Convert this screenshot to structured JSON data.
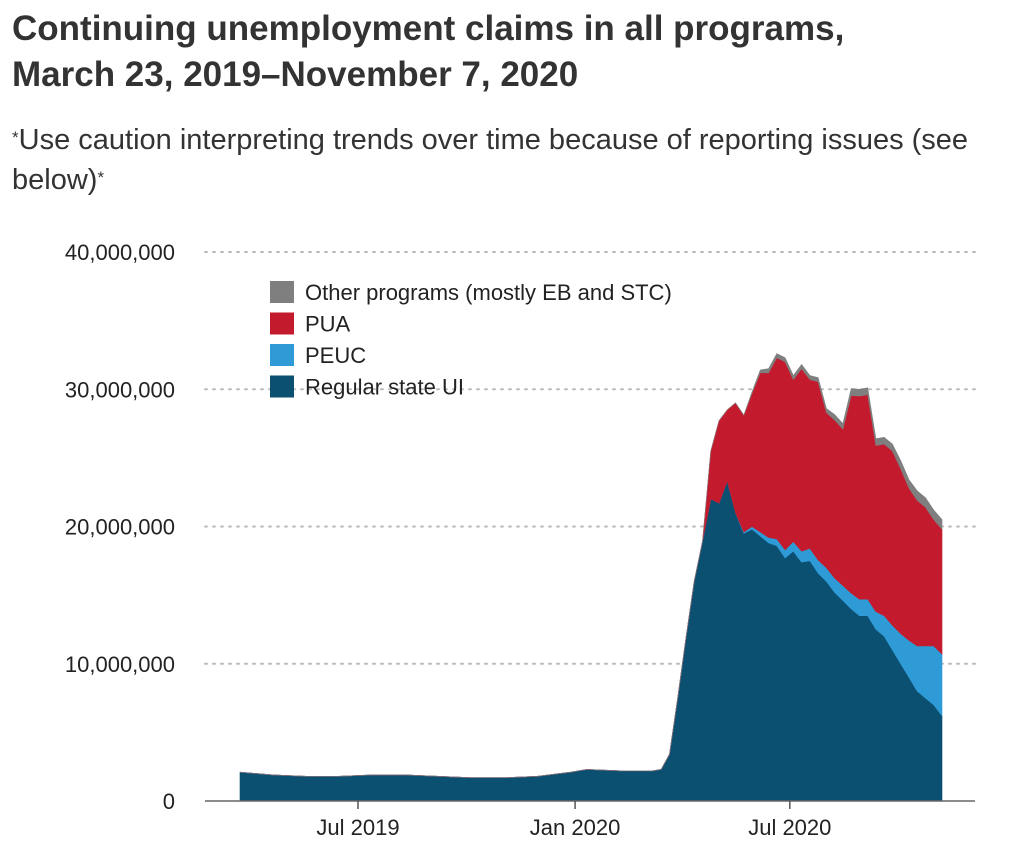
{
  "title_line1": "Continuing unemployment claims in all programs,",
  "title_line2": "March 23, 2019–November 7, 2020",
  "subtitle_prefix": "*",
  "subtitle_text": "Use caution interpreting trends over time because of reporting issues (see below)",
  "subtitle_suffix": "*",
  "chart_data": {
    "type": "area",
    "stacked": true,
    "x_axis": {
      "type": "date",
      "range": [
        "2019-03-23",
        "2020-11-07"
      ],
      "ticks": [
        {
          "date": "2019-07-01",
          "label": "Jul 2019"
        },
        {
          "date": "2020-01-01",
          "label": "Jan 2020"
        },
        {
          "date": "2020-07-01",
          "label": "Jul 2020"
        }
      ]
    },
    "y_axis": {
      "range": [
        0,
        40000000
      ],
      "ticks": [
        {
          "value": 0,
          "label": "0"
        },
        {
          "value": 10000000,
          "label": "10,000,000"
        },
        {
          "value": 20000000,
          "label": "20,000,000"
        },
        {
          "value": 30000000,
          "label": "30,000,000"
        },
        {
          "value": 40000000,
          "label": "40,000,000"
        }
      ],
      "grid": "dotted"
    },
    "legend_position": "top-left",
    "colors": {
      "Regular state UI": "#0b4f71",
      "PEUC": "#2e9bd6",
      "PUA": "#c31b2d",
      "Other programs (mostly EB and STC)": "#7f7f7f"
    },
    "legend_order": [
      "Other programs (mostly EB and STC)",
      "PUA",
      "PEUC",
      "Regular state UI"
    ],
    "dates": [
      "2019-03-23",
      "2019-04-20",
      "2019-05-18",
      "2019-06-15",
      "2019-07-13",
      "2019-08-10",
      "2019-09-07",
      "2019-10-05",
      "2019-11-02",
      "2019-11-30",
      "2019-12-28",
      "2020-01-11",
      "2020-02-08",
      "2020-03-07",
      "2020-03-14",
      "2020-03-21",
      "2020-03-28",
      "2020-04-04",
      "2020-04-11",
      "2020-04-18",
      "2020-04-25",
      "2020-05-02",
      "2020-05-09",
      "2020-05-16",
      "2020-05-23",
      "2020-05-30",
      "2020-06-06",
      "2020-06-13",
      "2020-06-20",
      "2020-06-27",
      "2020-07-04",
      "2020-07-11",
      "2020-07-18",
      "2020-07-25",
      "2020-08-01",
      "2020-08-08",
      "2020-08-15",
      "2020-08-22",
      "2020-08-29",
      "2020-09-05",
      "2020-09-12",
      "2020-09-19",
      "2020-09-26",
      "2020-10-03",
      "2020-10-10",
      "2020-10-17",
      "2020-10-24",
      "2020-10-31",
      "2020-11-07"
    ],
    "series": [
      {
        "name": "Regular state UI",
        "values": [
          2100000,
          1900000,
          1800000,
          1800000,
          1900000,
          1900000,
          1800000,
          1700000,
          1700000,
          1800000,
          2100000,
          2300000,
          2200000,
          2200000,
          2300000,
          3400000,
          7500000,
          11900000,
          16000000,
          18900000,
          22000000,
          21700000,
          23300000,
          21000000,
          19500000,
          19800000,
          19300000,
          18800000,
          18600000,
          17700000,
          18200000,
          17400000,
          17500000,
          16600000,
          16000000,
          15200000,
          14600000,
          14000000,
          13500000,
          13500000,
          12500000,
          12000000,
          11000000,
          10000000,
          9000000,
          8000000,
          7500000,
          7000000,
          6200000
        ]
      },
      {
        "name": "PEUC",
        "values": [
          0,
          0,
          0,
          0,
          0,
          0,
          0,
          0,
          0,
          0,
          0,
          0,
          0,
          0,
          0,
          0,
          0,
          0,
          0,
          0,
          0,
          0,
          0,
          0,
          100000,
          200000,
          300000,
          400000,
          500000,
          600000,
          700000,
          800000,
          900000,
          950000,
          1000000,
          1050000,
          1100000,
          1150000,
          1200000,
          1200000,
          1300000,
          1500000,
          1800000,
          2200000,
          2700000,
          3300000,
          3800000,
          4300000,
          4500000
        ]
      },
      {
        "name": "PUA",
        "values": [
          0,
          0,
          0,
          0,
          0,
          0,
          0,
          0,
          0,
          0,
          0,
          0,
          0,
          0,
          0,
          0,
          0,
          0,
          0,
          0,
          3500000,
          6000000,
          5200000,
          8000000,
          8500000,
          9700000,
          11600000,
          12000000,
          13200000,
          13700000,
          11800000,
          13300000,
          12300000,
          13000000,
          11300000,
          11500000,
          11400000,
          14400000,
          14800000,
          14900000,
          12100000,
          12500000,
          12700000,
          12000000,
          11100000,
          10600000,
          10100000,
          9200000,
          9100000
        ]
      },
      {
        "name": "Other programs (mostly EB and STC)",
        "values": [
          0,
          0,
          0,
          0,
          0,
          0,
          0,
          0,
          0,
          0,
          0,
          0,
          0,
          0,
          0,
          0,
          0,
          0,
          0,
          0,
          0,
          0,
          0,
          0,
          0,
          100000,
          200000,
          300000,
          300000,
          300000,
          300000,
          300000,
          300000,
          300000,
          300000,
          400000,
          400000,
          500000,
          500000,
          500000,
          500000,
          500000,
          500000,
          600000,
          600000,
          700000,
          700000,
          700000,
          700000
        ]
      }
    ]
  }
}
